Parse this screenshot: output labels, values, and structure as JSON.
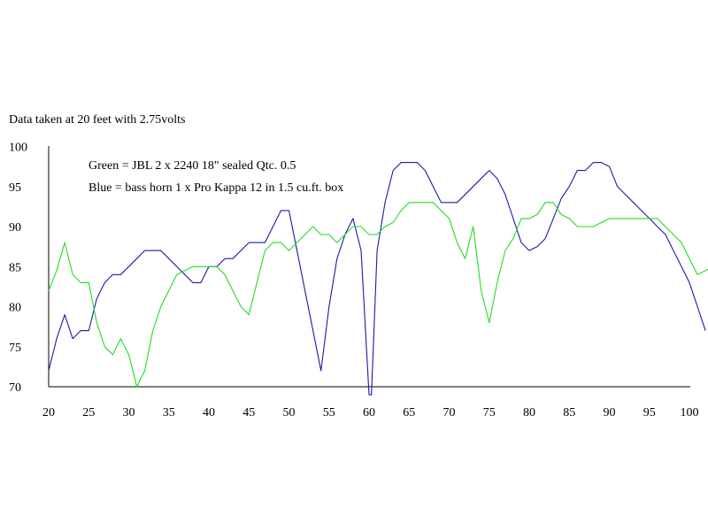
{
  "chart_data": {
    "type": "line",
    "title": "",
    "xlabel": "",
    "ylabel": "",
    "xlim": [
      20,
      101
    ],
    "ylim": [
      70,
      100
    ],
    "grid": false,
    "annotations": [
      "Data taken at 20 feet with 2.75volts",
      "Green = JBL 2 x 2240 18\" sealed Qtc. 0.5",
      "Blue = bass horn 1 x Pro Kappa 12 in 1.5 cu.ft. box"
    ],
    "x_ticks": [
      20,
      25,
      30,
      35,
      40,
      45,
      50,
      55,
      60,
      65,
      70,
      75,
      80,
      85,
      90,
      95,
      100
    ],
    "y_ticks": [
      70,
      75,
      80,
      85,
      90,
      95,
      100
    ],
    "series": [
      {
        "color": "#1a1aa6",
        "points": [
          [
            20,
            72
          ],
          [
            21,
            76
          ],
          [
            22,
            79
          ],
          [
            23,
            76
          ],
          [
            24,
            77
          ],
          [
            25,
            77
          ],
          [
            26,
            81
          ],
          [
            27,
            83
          ],
          [
            28,
            84
          ],
          [
            29,
            84
          ],
          [
            30,
            85
          ],
          [
            31,
            86
          ],
          [
            32,
            87
          ],
          [
            33,
            87
          ],
          [
            34,
            87
          ],
          [
            35,
            86
          ],
          [
            36,
            85
          ],
          [
            37,
            84
          ],
          [
            38,
            83
          ],
          [
            39,
            83
          ],
          [
            40,
            85
          ],
          [
            41,
            85
          ],
          [
            42,
            86
          ],
          [
            43,
            86
          ],
          [
            44,
            87
          ],
          [
            45,
            88
          ],
          [
            46,
            88
          ],
          [
            47,
            88
          ],
          [
            48,
            90
          ],
          [
            49,
            92
          ],
          [
            50,
            92
          ],
          [
            51,
            87
          ],
          [
            52,
            82
          ],
          [
            53,
            77
          ],
          [
            54,
            72
          ],
          [
            55,
            80
          ],
          [
            56,
            86
          ],
          [
            57,
            89
          ],
          [
            58,
            91
          ],
          [
            59,
            87
          ],
          [
            60,
            69
          ],
          [
            60.3,
            69
          ],
          [
            61,
            87
          ],
          [
            62,
            93
          ],
          [
            63,
            97
          ],
          [
            64,
            98
          ],
          [
            65,
            98
          ],
          [
            66,
            98
          ],
          [
            67,
            97
          ],
          [
            68,
            95
          ],
          [
            69,
            93
          ],
          [
            70,
            93
          ],
          [
            71,
            93
          ],
          [
            72,
            94
          ],
          [
            73,
            95
          ],
          [
            74,
            96
          ],
          [
            75,
            97
          ],
          [
            76,
            96
          ],
          [
            77,
            94
          ],
          [
            78,
            91
          ],
          [
            79,
            88
          ],
          [
            80,
            87
          ],
          [
            81,
            87.5
          ],
          [
            82,
            88.5
          ],
          [
            83,
            91
          ],
          [
            84,
            93.5
          ],
          [
            85,
            95
          ],
          [
            86,
            97
          ],
          [
            87,
            97
          ],
          [
            88,
            98
          ],
          [
            89,
            98
          ],
          [
            90,
            97.5
          ],
          [
            91,
            95
          ],
          [
            92,
            94
          ],
          [
            93,
            93
          ],
          [
            94,
            92
          ],
          [
            95,
            91
          ],
          [
            96,
            90
          ],
          [
            97,
            89
          ],
          [
            98,
            87
          ],
          [
            99,
            85
          ],
          [
            100,
            83
          ],
          [
            101,
            80
          ],
          [
            102,
            77
          ]
        ]
      },
      {
        "color": "#22dd22",
        "points": [
          [
            20,
            82
          ],
          [
            21,
            84.5
          ],
          [
            22,
            88
          ],
          [
            23,
            84
          ],
          [
            24,
            83
          ],
          [
            25,
            83
          ],
          [
            26,
            78
          ],
          [
            27,
            75
          ],
          [
            28,
            74
          ],
          [
            29,
            76
          ],
          [
            30,
            74
          ],
          [
            31,
            70
          ],
          [
            32,
            72
          ],
          [
            33,
            77
          ],
          [
            34,
            80
          ],
          [
            35,
            82
          ],
          [
            36,
            84
          ],
          [
            37,
            84.5
          ],
          [
            38,
            85
          ],
          [
            39,
            85
          ],
          [
            40,
            85
          ],
          [
            41,
            85
          ],
          [
            42,
            84
          ],
          [
            43,
            82
          ],
          [
            44,
            80
          ],
          [
            45,
            79
          ],
          [
            46,
            83
          ],
          [
            47,
            87
          ],
          [
            48,
            88
          ],
          [
            49,
            88
          ],
          [
            50,
            87
          ],
          [
            51,
            88
          ],
          [
            52,
            89
          ],
          [
            53,
            90
          ],
          [
            54,
            89
          ],
          [
            55,
            89
          ],
          [
            56,
            88
          ],
          [
            57,
            89
          ],
          [
            58,
            90
          ],
          [
            59,
            90
          ],
          [
            60,
            89
          ],
          [
            61,
            89
          ],
          [
            62,
            90
          ],
          [
            63,
            90.5
          ],
          [
            64,
            92
          ],
          [
            65,
            93
          ],
          [
            66,
            93
          ],
          [
            67,
            93
          ],
          [
            68,
            93
          ],
          [
            69,
            92
          ],
          [
            70,
            91
          ],
          [
            71,
            88
          ],
          [
            72,
            86
          ],
          [
            73,
            90
          ],
          [
            74,
            82
          ],
          [
            75,
            78
          ],
          [
            76,
            83
          ],
          [
            77,
            87
          ],
          [
            78,
            88.5
          ],
          [
            79,
            91
          ],
          [
            80,
            91
          ],
          [
            81,
            91.5
          ],
          [
            82,
            93
          ],
          [
            83,
            93
          ],
          [
            84,
            91.5
          ],
          [
            85,
            91
          ],
          [
            86,
            90
          ],
          [
            87,
            90
          ],
          [
            88,
            90
          ],
          [
            89,
            90.5
          ],
          [
            90,
            91
          ],
          [
            91,
            91
          ],
          [
            92,
            91
          ],
          [
            93,
            91
          ],
          [
            94,
            91
          ],
          [
            95,
            91
          ],
          [
            96,
            91
          ],
          [
            97,
            90
          ],
          [
            98,
            89
          ],
          [
            99,
            88
          ],
          [
            100,
            86
          ],
          [
            101,
            84
          ],
          [
            102,
            84.5
          ],
          [
            103,
            85
          ]
        ]
      }
    ]
  }
}
